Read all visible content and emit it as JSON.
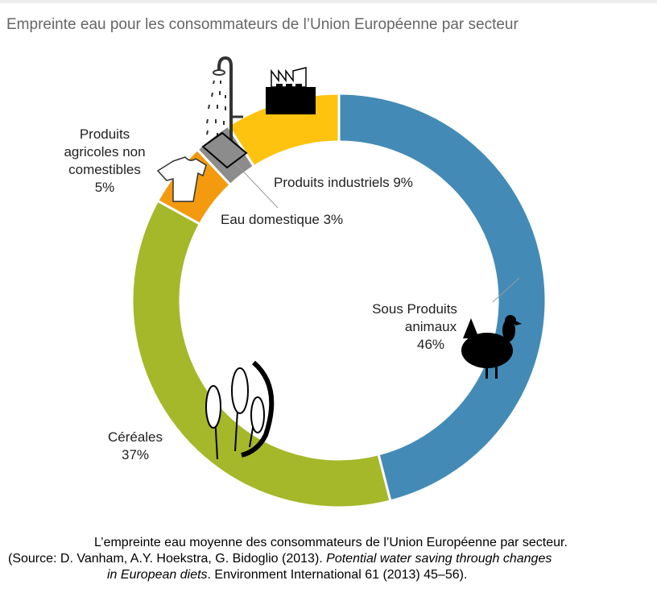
{
  "title": "Empreinte eau pour les consommateurs de l’Union Européenne par secteur",
  "chart_data": {
    "type": "pie",
    "variant": "donut",
    "title": "Empreinte eau pour les consommateurs de l’Union Européenne par secteur",
    "slices": [
      {
        "name": "Sous Produits animaux",
        "value": 46,
        "label": "46%",
        "color": "#438bb6",
        "icon": "chicken-icon"
      },
      {
        "name": "Céréales",
        "value": 37,
        "label": "37%",
        "color": "#a5b82a",
        "icon": "wheat-icon"
      },
      {
        "name": "Produits agricoles non comestibles",
        "value": 5,
        "label": "5%",
        "color": "#f39a0e",
        "icon": "tshirt-icon"
      },
      {
        "name": "Eau domestique",
        "value": 3,
        "label": "3%",
        "color": "#8c8c8c",
        "icon": "shower-icon"
      },
      {
        "name": "Produits industriels",
        "value": 9,
        "label": "9%",
        "color": "#fdc30f",
        "icon": "factory-icon"
      }
    ]
  },
  "labels": {
    "animaux": [
      "Sous Produits",
      "animaux",
      "46%"
    ],
    "cereales": [
      "Céréales",
      "37%"
    ],
    "agricoles": [
      "Produits",
      "agricoles non",
      "comestibles",
      "5%"
    ],
    "domestique": "Eau domestique 3%",
    "industriels": "Produits industriels 9%"
  },
  "caption": {
    "line1": "L’empreinte eau moyenne des consommateurs de l’Union Européenne par secteur.",
    "line2_a": "(Source: D. Vanham, A.Y. Hoekstra, G. Bidoglio (2013). ",
    "line2_b": "Potential water saving through changes",
    "line3_a": "in European diets",
    "line3_b": ". Environment International 61 (2013) 45–56)."
  }
}
